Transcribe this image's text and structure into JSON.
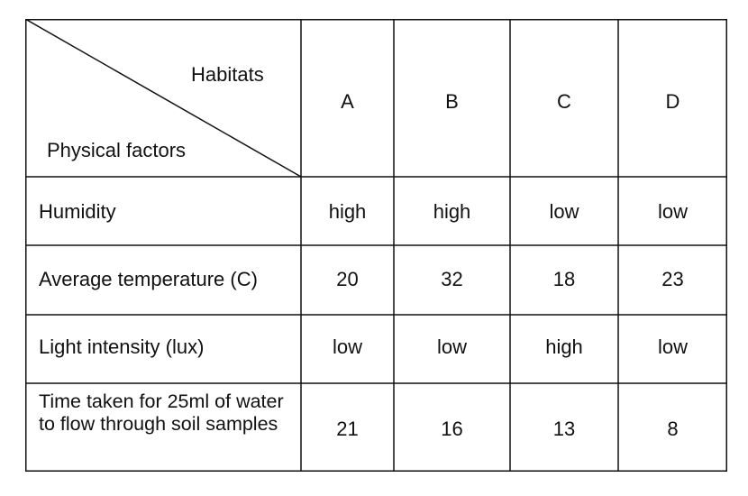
{
  "table": {
    "header": {
      "column_header_label": "Habitats",
      "row_header_label": "Physical factors",
      "habitats": [
        "A",
        "B",
        "C",
        "D"
      ]
    },
    "rows": [
      {
        "factor": "Humidity",
        "values": [
          "high",
          "high",
          "low",
          "low"
        ]
      },
      {
        "factor": "Average temperature (C)",
        "values": [
          "20",
          "32",
          "18",
          "23"
        ]
      },
      {
        "factor": "Light intensity (lux)",
        "values": [
          "low",
          "low",
          "high",
          "low"
        ]
      },
      {
        "factor": "Time taken for 25ml of water to flow through soil samples",
        "values": [
          "21",
          "16",
          "13",
          "8"
        ]
      }
    ]
  }
}
